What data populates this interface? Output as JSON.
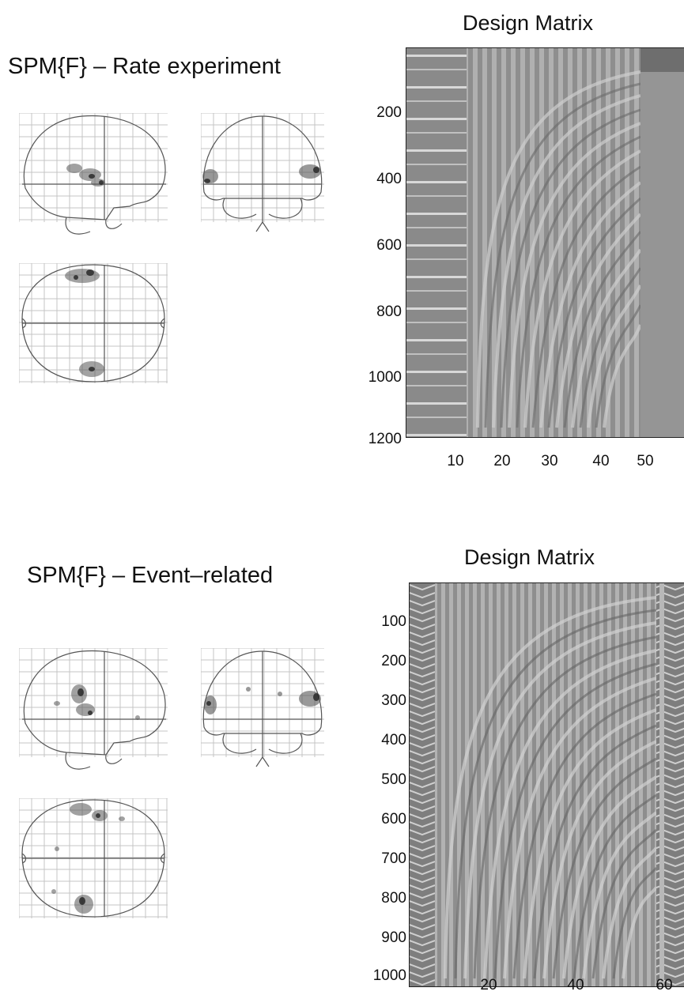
{
  "panels": [
    {
      "spm_title": "SPM{F} – Rate experiment",
      "design_title": "Design Matrix",
      "y_ticks": [
        "200",
        "400",
        "600",
        "800",
        "1000",
        "1200"
      ],
      "x_ticks": [
        "10",
        "20",
        "30",
        "40",
        "50"
      ]
    },
    {
      "spm_title": "SPM{F} – Event–related",
      "design_title": "Design Matrix",
      "y_ticks": [
        "100",
        "200",
        "300",
        "400",
        "500",
        "600",
        "700",
        "800",
        "900",
        "1000"
      ],
      "x_ticks": [
        "20",
        "40",
        "60"
      ]
    }
  ]
}
